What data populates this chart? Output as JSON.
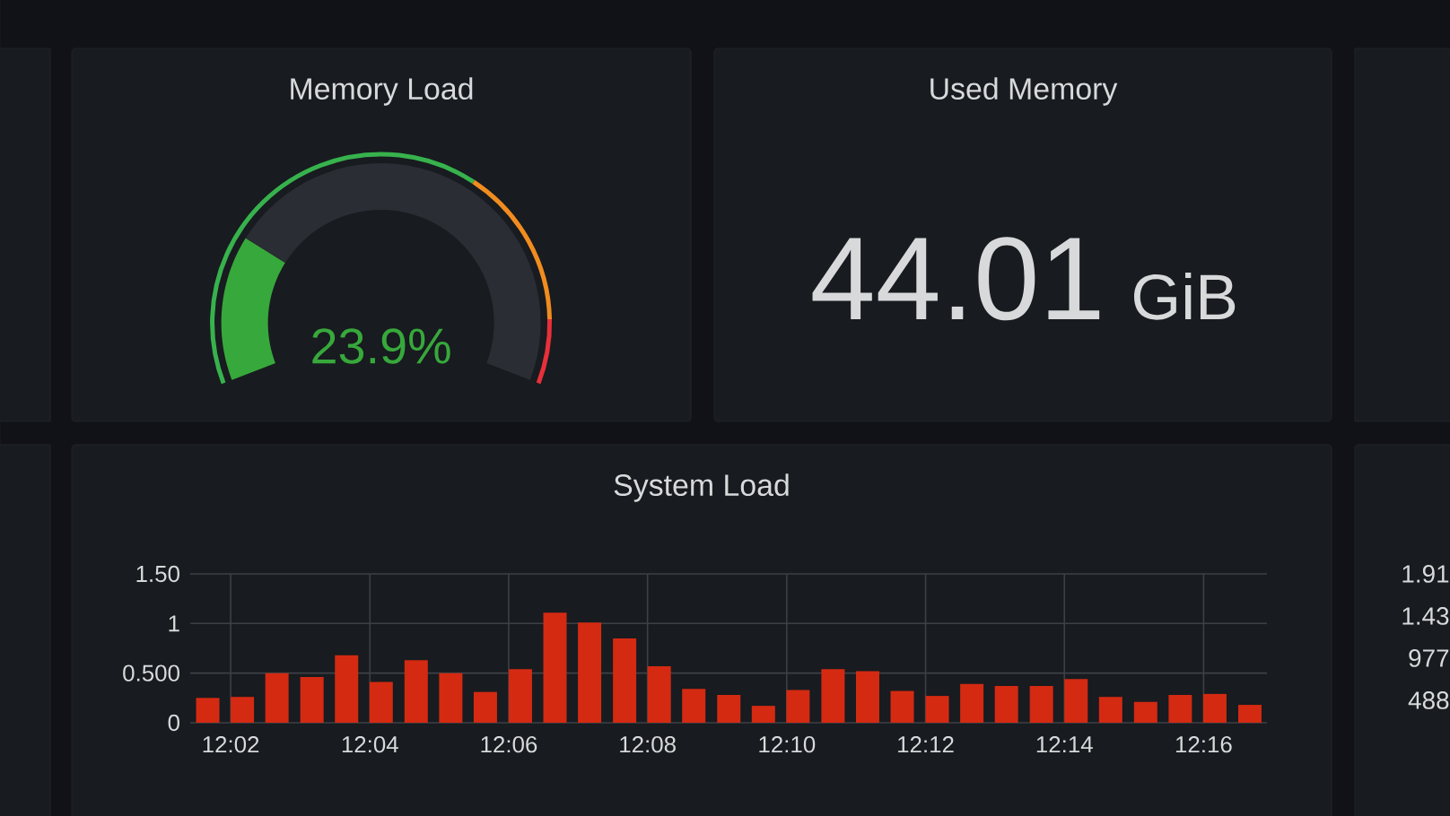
{
  "chart_data": [
    {
      "type": "donut",
      "title": "Memory Load",
      "categories": [
        null,
        null
      ],
      "values": [
        23.9,
        76.1
      ],
      "colors": [
        "#37a83b",
        "#2a2d33"
      ],
      "annotations": [
        "23.9%"
      ]
    },
    {
      "type": "other",
      "title": "Used Memory",
      "annotations": [
        "44.01",
        "GiB"
      ]
    },
    {
      "type": "bar",
      "title": "System Load",
      "color": "#d42a12",
      "grid": true,
      "x": [
        12.0278,
        12.0361,
        12.0444,
        12.0528,
        12.0611,
        12.0694,
        12.0778,
        12.0861,
        12.0944,
        12.1028,
        12.1111,
        12.1194,
        12.1278,
        12.1361,
        12.1444,
        12.1528,
        12.1611,
        12.1694,
        12.1778,
        12.1861,
        12.1944,
        12.2028,
        12.2111,
        12.2194,
        12.2278,
        12.2361,
        12.2444,
        12.2528,
        12.2611,
        12.2694,
        12.2778
      ],
      "values": [
        0.25,
        0.26,
        0.5,
        0.46,
        0.68,
        0.41,
        0.63,
        0.5,
        0.31,
        0.54,
        1.11,
        1.01,
        0.85,
        0.57,
        0.34,
        0.28,
        0.17,
        0.33,
        0.54,
        0.52,
        0.32,
        0.27,
        0.39,
        0.37,
        0.37,
        0.44,
        0.26,
        0.21,
        0.28,
        0.29,
        0.18
      ],
      "xlim": [
        12.0236,
        12.2819
      ],
      "ylim": [
        0,
        1.5
      ],
      "xticks": [
        {
          "value": 12.0333,
          "label": "12:02"
        },
        {
          "value": 12.0667,
          "label": "12:04"
        },
        {
          "value": 12.1,
          "label": "12:06"
        },
        {
          "value": 12.1333,
          "label": "12:08"
        },
        {
          "value": 12.1667,
          "label": "12:10"
        },
        {
          "value": 12.2,
          "label": "12:12"
        },
        {
          "value": 12.2333,
          "label": "12:14"
        },
        {
          "value": 12.2667,
          "label": "12:16"
        }
      ],
      "yticks": [
        0,
        {
          "value": 0.5,
          "label": "0.500"
        },
        1,
        {
          "value": 1.5,
          "label": "1.50"
        }
      ]
    },
    {
      "type": "other",
      "annotations": [
        "1.91",
        "1.43",
        "977",
        "488"
      ]
    }
  ]
}
